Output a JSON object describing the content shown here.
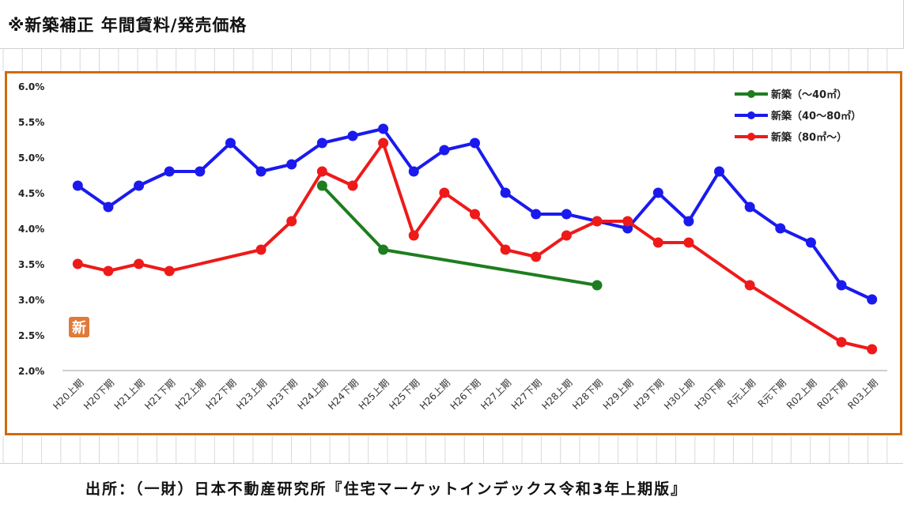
{
  "header": {
    "title": "※新築補正 年間賃料/発売価格"
  },
  "footer": {
    "source": "出所：（一財）日本不動産研究所『住宅マーケットインデックス令和3年上期版』"
  },
  "badge": {
    "text": "新",
    "color": "#e07a3a"
  },
  "colors": {
    "frame": "#d06a10",
    "grid": "#d8d8d8",
    "axis": "#bdbdbd"
  },
  "chart_data": {
    "type": "line",
    "categories": [
      "H20上期",
      "H20下期",
      "H21上期",
      "H21下期",
      "H22上期",
      "H22下期",
      "H23上期",
      "H23下期",
      "H24上期",
      "H24下期",
      "H25上期",
      "H25下期",
      "H26上期",
      "H26下期",
      "H27上期",
      "H27下期",
      "H28上期",
      "H28下期",
      "H29上期",
      "H29下期",
      "H30上期",
      "H30下期",
      "R元上期",
      "R元下期",
      "R02上期",
      "R02下期",
      "R03上期"
    ],
    "y_ticks": [
      "6.0%",
      "5.5%",
      "5.0%",
      "4.5%",
      "4.0%",
      "3.5%",
      "3.0%",
      "2.5%",
      "2.0%"
    ],
    "ylim": [
      2.0,
      6.0
    ],
    "grid": false,
    "legend_position": "top-right",
    "series": [
      {
        "name": "新築（～40㎡）",
        "color": "#1e7d1e",
        "values": [
          null,
          null,
          null,
          null,
          null,
          null,
          null,
          null,
          4.6,
          null,
          3.7,
          null,
          null,
          null,
          null,
          null,
          null,
          3.2,
          null,
          null,
          null,
          null,
          null,
          null,
          null,
          null,
          null
        ]
      },
      {
        "name": "新築（40～80㎡）",
        "color": "#1a1aee",
        "values": [
          4.6,
          4.3,
          4.6,
          4.8,
          4.8,
          5.2,
          4.8,
          4.9,
          5.2,
          5.3,
          5.4,
          4.8,
          5.1,
          5.2,
          4.5,
          4.2,
          4.2,
          4.1,
          4.0,
          4.5,
          4.1,
          4.8,
          4.3,
          4.0,
          3.8,
          3.2,
          3.0
        ]
      },
      {
        "name": "新築（80㎡～）",
        "color": "#ee1a1a",
        "values": [
          3.5,
          3.4,
          3.5,
          3.4,
          null,
          null,
          3.7,
          4.1,
          4.8,
          4.6,
          5.2,
          3.9,
          4.5,
          4.2,
          3.7,
          3.6,
          3.9,
          4.1,
          4.1,
          3.8,
          3.8,
          null,
          3.2,
          null,
          null,
          2.4,
          2.3
        ]
      }
    ]
  }
}
